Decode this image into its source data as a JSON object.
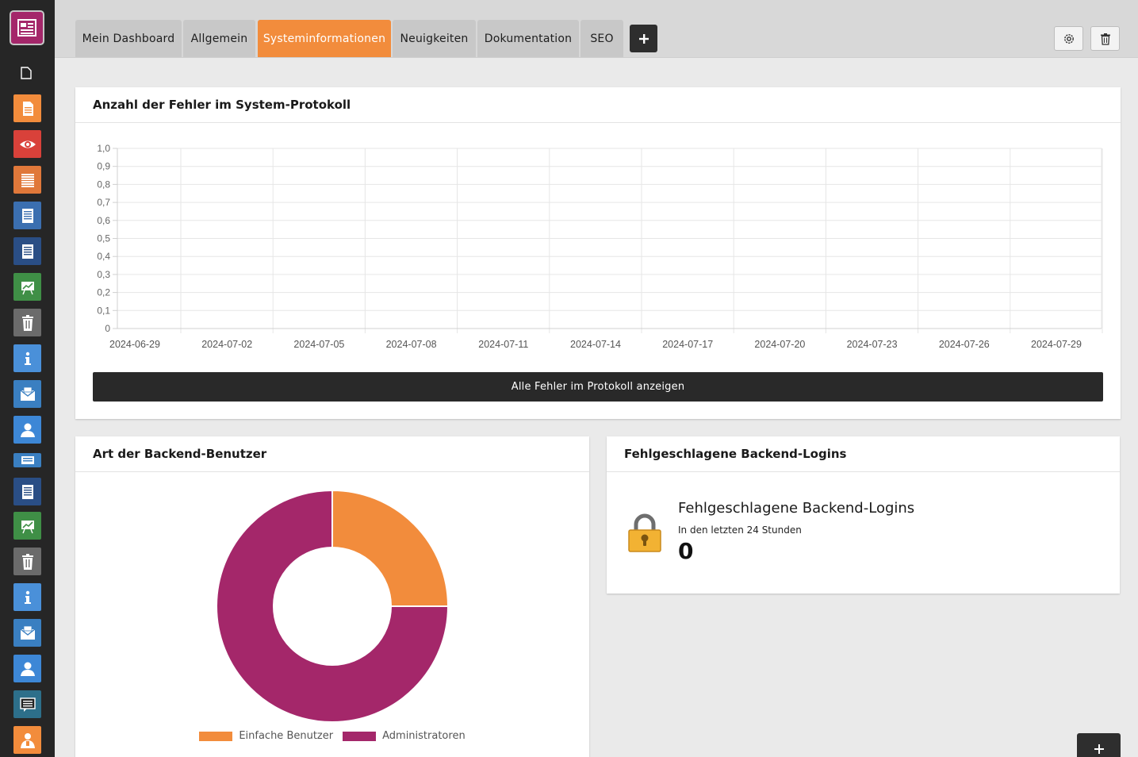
{
  "tabs": [
    {
      "label": "Mein Dashboard"
    },
    {
      "label": "Allgemein"
    },
    {
      "label": "Systeminformationen"
    },
    {
      "label": "Neuigkeiten"
    },
    {
      "label": "Dokumentation"
    },
    {
      "label": "SEO"
    }
  ],
  "colors": {
    "accent": "#f28c3c",
    "brand": "#a4276a",
    "dark": "#292929"
  },
  "sidebar": {
    "icons": [
      "page-icon",
      "document-icon",
      "eye-icon",
      "list-icon",
      "form-icon",
      "form-icon",
      "chart-icon",
      "trash-icon",
      "info-icon",
      "mail-icon",
      "user-icon",
      "card-icon",
      "form-icon",
      "chart-icon",
      "trash-icon",
      "info-icon",
      "mail-icon",
      "user-icon",
      "comment-icon",
      "users-icon"
    ]
  },
  "errors_card": {
    "title": "Anzahl der Fehler im System-Protokoll",
    "button_label": "Alle Fehler im Protokoll anzeigen"
  },
  "users_card": {
    "title": "Art der Backend-Benutzer"
  },
  "logins_card": {
    "title": "Fehlgeschlagene Backend-Logins",
    "heading": "Fehlgeschlagene Backend-Logins",
    "subtitle": "In den letzten 24 Stunden",
    "count": "0"
  },
  "chart_data": [
    {
      "type": "line",
      "x": [
        "2024-06-29",
        "2024-07-02",
        "2024-07-05",
        "2024-07-08",
        "2024-07-11",
        "2024-07-14",
        "2024-07-17",
        "2024-07-20",
        "2024-07-23",
        "2024-07-26",
        "2024-07-29"
      ],
      "y_ticks": [
        "1,0",
        "0,9",
        "0,8",
        "0,7",
        "0,6",
        "0,5",
        "0,4",
        "0,3",
        "0,2",
        "0,1",
        "0"
      ],
      "ylim": [
        0,
        1
      ],
      "grid": true,
      "series": []
    },
    {
      "type": "pie",
      "labels": [
        "Einfache Benutzer",
        "Administratoren"
      ],
      "values": [
        1,
        3
      ],
      "colors": [
        "#f28c3c",
        "#a4276a"
      ],
      "legend": "bottom"
    }
  ]
}
